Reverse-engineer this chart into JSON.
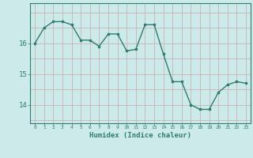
{
  "x": [
    0,
    1,
    2,
    3,
    4,
    5,
    6,
    7,
    8,
    9,
    10,
    11,
    12,
    13,
    14,
    15,
    16,
    17,
    18,
    19,
    20,
    21,
    22,
    23
  ],
  "y": [
    16.0,
    16.5,
    16.7,
    16.7,
    16.6,
    16.1,
    16.1,
    15.9,
    16.3,
    16.3,
    15.75,
    15.8,
    16.6,
    16.6,
    15.65,
    14.75,
    14.75,
    14.0,
    13.85,
    13.85,
    14.4,
    14.65,
    14.75,
    14.7
  ],
  "line_color": "#2e7d6e",
  "marker_color": "#2e7d6e",
  "bg_color": "#cdeaea",
  "grid_color_v": "#c8a8a8",
  "grid_color_h": "#c8a8a8",
  "axis_color": "#2e7d6e",
  "tick_color": "#2e7d6e",
  "xlabel": "Humidex (Indice chaleur)",
  "xlabel_color": "#2e7d6e",
  "yticks": [
    14,
    15,
    16
  ],
  "ylim": [
    13.4,
    17.3
  ],
  "xlim": [
    -0.5,
    23.5
  ]
}
